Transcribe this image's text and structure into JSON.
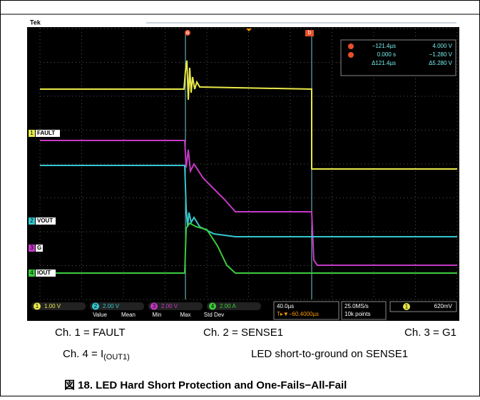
{
  "scope": {
    "brand": "Tek",
    "cursor_a": "a",
    "cursor_b": "b",
    "readout": {
      "a_time": "−121.4µs",
      "a_volt": "4.000 V",
      "b_time": "0.000 s",
      "b_volt": "−1.280 V",
      "delta_time": "Δ121.4µs",
      "delta_volt": "Δ5.280 V"
    },
    "channels": [
      {
        "number": "1",
        "label": "FAULT",
        "scale": "1.00 V"
      },
      {
        "number": "2",
        "label": "VOUT",
        "scale": "2.00 V"
      },
      {
        "number": "3",
        "label": "G",
        "scale": "2.00 V"
      },
      {
        "number": "4",
        "label": "IOUT",
        "scale": "2.00 A"
      }
    ],
    "measure_headers": [
      "Value",
      "Mean",
      "Min",
      "Max",
      "Std Dev"
    ],
    "timebase": "40.0µs",
    "trigger_pos": "T▸▼−60.4000µs",
    "sample_rate": "25.0MS/s",
    "record": "10k points",
    "trigger_channel": "1",
    "trigger_level": "620mV"
  },
  "captions": {
    "ch1": "Ch. 1 = FAULT",
    "ch2": "Ch. 2 = SENSE1",
    "ch3": "Ch. 3 = G1",
    "ch4": {
      "text": "Ch. 4 = I",
      "subscript": "(OUT1)"
    },
    "note": "LED short-to-ground on SENSE1"
  },
  "figure_title": "図 18. LED Hard Short Protection and One-Fails−All-Fail"
}
